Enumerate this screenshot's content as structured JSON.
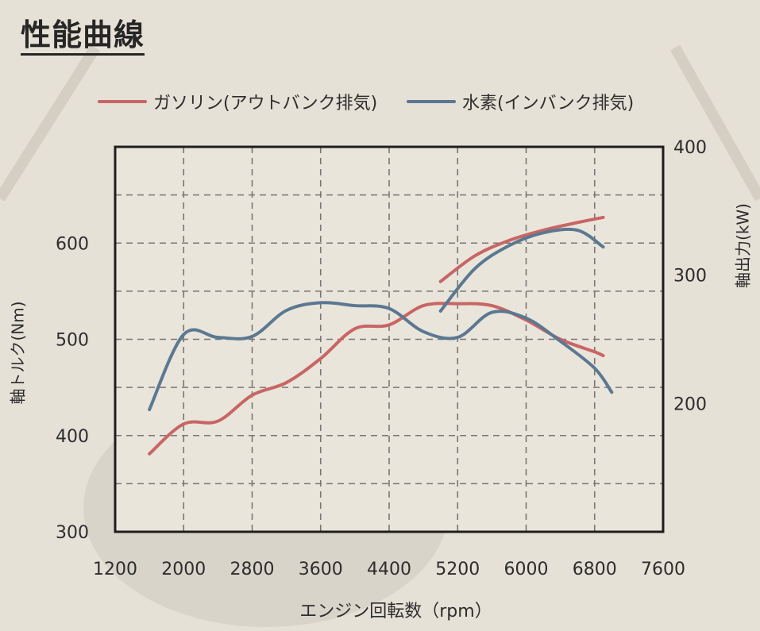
{
  "page": {
    "title": "性能曲線"
  },
  "colors": {
    "gasoline": "#c96565",
    "hydrogen": "#5b7891",
    "grid": "#777777",
    "frame": "#1e1e1e",
    "background": "#e6e1d6"
  },
  "chart_data": {
    "type": "line",
    "title": "",
    "xlabel": "エンジン回転数（rpm）",
    "ylabel_left": "軸トルク(Nm)",
    "ylabel_right": "軸出力(kW)",
    "xlim": [
      1200,
      7600
    ],
    "ylim_left": [
      300,
      700
    ],
    "ylim_right": [
      100,
      400
    ],
    "x_ticks": [
      "1200",
      "2000",
      "2800",
      "3600",
      "4400",
      "5200",
      "6000",
      "6800",
      "7600"
    ],
    "y_ticks_left": [
      "300",
      "400",
      "500",
      "600"
    ],
    "y_ticks_right": [
      "200",
      "300",
      "400"
    ],
    "legend": {
      "position": "top"
    },
    "grid": true,
    "series": [
      {
        "name": "ガソリン(アウトバンク排気)",
        "metric": "torque",
        "axis": "left",
        "color_key": "gasoline",
        "points": [
          [
            1600,
            381
          ],
          [
            2000,
            412
          ],
          [
            2400,
            415
          ],
          [
            2800,
            442
          ],
          [
            3200,
            455
          ],
          [
            3600,
            480
          ],
          [
            4000,
            511
          ],
          [
            4400,
            515
          ],
          [
            4800,
            535
          ],
          [
            5200,
            537
          ],
          [
            5600,
            535
          ],
          [
            6000,
            520
          ],
          [
            6400,
            500
          ],
          [
            6800,
            487
          ],
          [
            6900,
            483
          ]
        ]
      },
      {
        "name": "水素(インバンク排気)",
        "metric": "torque",
        "axis": "left",
        "color_key": "hydrogen",
        "points": [
          [
            1600,
            427
          ],
          [
            2000,
            505
          ],
          [
            2400,
            502
          ],
          [
            2800,
            503
          ],
          [
            3200,
            530
          ],
          [
            3600,
            538
          ],
          [
            4000,
            535
          ],
          [
            4400,
            532
          ],
          [
            4800,
            508
          ],
          [
            5200,
            502
          ],
          [
            5600,
            528
          ],
          [
            6000,
            522
          ],
          [
            6400,
            498
          ],
          [
            6800,
            470
          ],
          [
            7000,
            445
          ]
        ]
      },
      {
        "name": "ガソリン(アウトバンク排気)",
        "metric": "power",
        "axis": "right",
        "color_key": "gasoline",
        "points": [
          [
            5000,
            295
          ],
          [
            5400,
            315
          ],
          [
            5800,
            327
          ],
          [
            6200,
            335
          ],
          [
            6600,
            341
          ],
          [
            6900,
            345
          ]
        ]
      },
      {
        "name": "水素(インバンク排気)",
        "metric": "power",
        "axis": "right",
        "color_key": "hydrogen",
        "points": [
          [
            5000,
            272
          ],
          [
            5400,
            305
          ],
          [
            5800,
            323
          ],
          [
            6200,
            333
          ],
          [
            6600,
            335
          ],
          [
            6900,
            322
          ]
        ]
      }
    ]
  },
  "legend_items": [
    {
      "label": "ガソリン(アウトバンク排気)"
    },
    {
      "label": "水素(インバンク排気)"
    }
  ]
}
